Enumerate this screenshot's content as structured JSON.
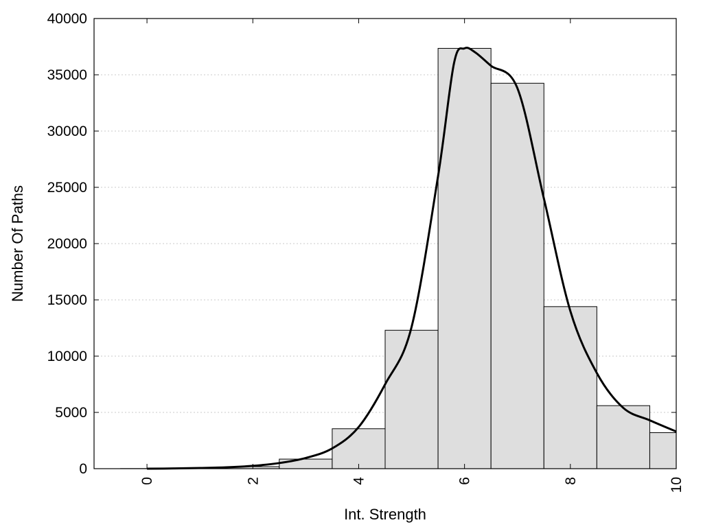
{
  "chart_data": {
    "type": "bar",
    "title": "",
    "xlabel": "Int. Strength",
    "ylabel": "Number Of Paths",
    "xlim": [
      -1,
      10
    ],
    "ylim": [
      0,
      40000
    ],
    "x_ticks": [
      0,
      2,
      4,
      6,
      8,
      10
    ],
    "x_tick_labels": [
      "0",
      "2",
      "4",
      "6",
      "8",
      "10"
    ],
    "y_ticks": [
      0,
      5000,
      10000,
      15000,
      20000,
      25000,
      30000,
      35000,
      40000
    ],
    "y_tick_labels": [
      "0",
      "5000",
      "10000",
      "15000",
      "20000",
      "25000",
      "30000",
      "35000",
      "40000"
    ],
    "grid": "horizontal dotted",
    "bin_width": 1,
    "categories": [
      0,
      1,
      2,
      3,
      4,
      5,
      6,
      7,
      8,
      9,
      10
    ],
    "values": [
      10,
      30,
      180,
      850,
      3550,
      12300,
      37350,
      34250,
      14400,
      5600,
      3200
    ],
    "fit_curve": {
      "x": [
        0,
        0.5,
        1,
        1.5,
        2,
        2.5,
        3,
        3.5,
        4,
        4.5,
        5,
        5.5,
        5.8,
        6,
        6.2,
        6.5,
        7,
        7.5,
        8,
        8.5,
        9,
        9.5,
        10
      ],
      "y": [
        0,
        20,
        60,
        120,
        250,
        500,
        950,
        1800,
        3700,
        7500,
        12600,
        26000,
        36000,
        37350,
        37000,
        35800,
        33800,
        24000,
        14000,
        8500,
        5400,
        4300,
        3300
      ]
    },
    "colors": {
      "bar_fill": "#dedede",
      "bar_stroke": "#000000",
      "curve": "#000000",
      "grid": "#c8c8c8"
    }
  }
}
